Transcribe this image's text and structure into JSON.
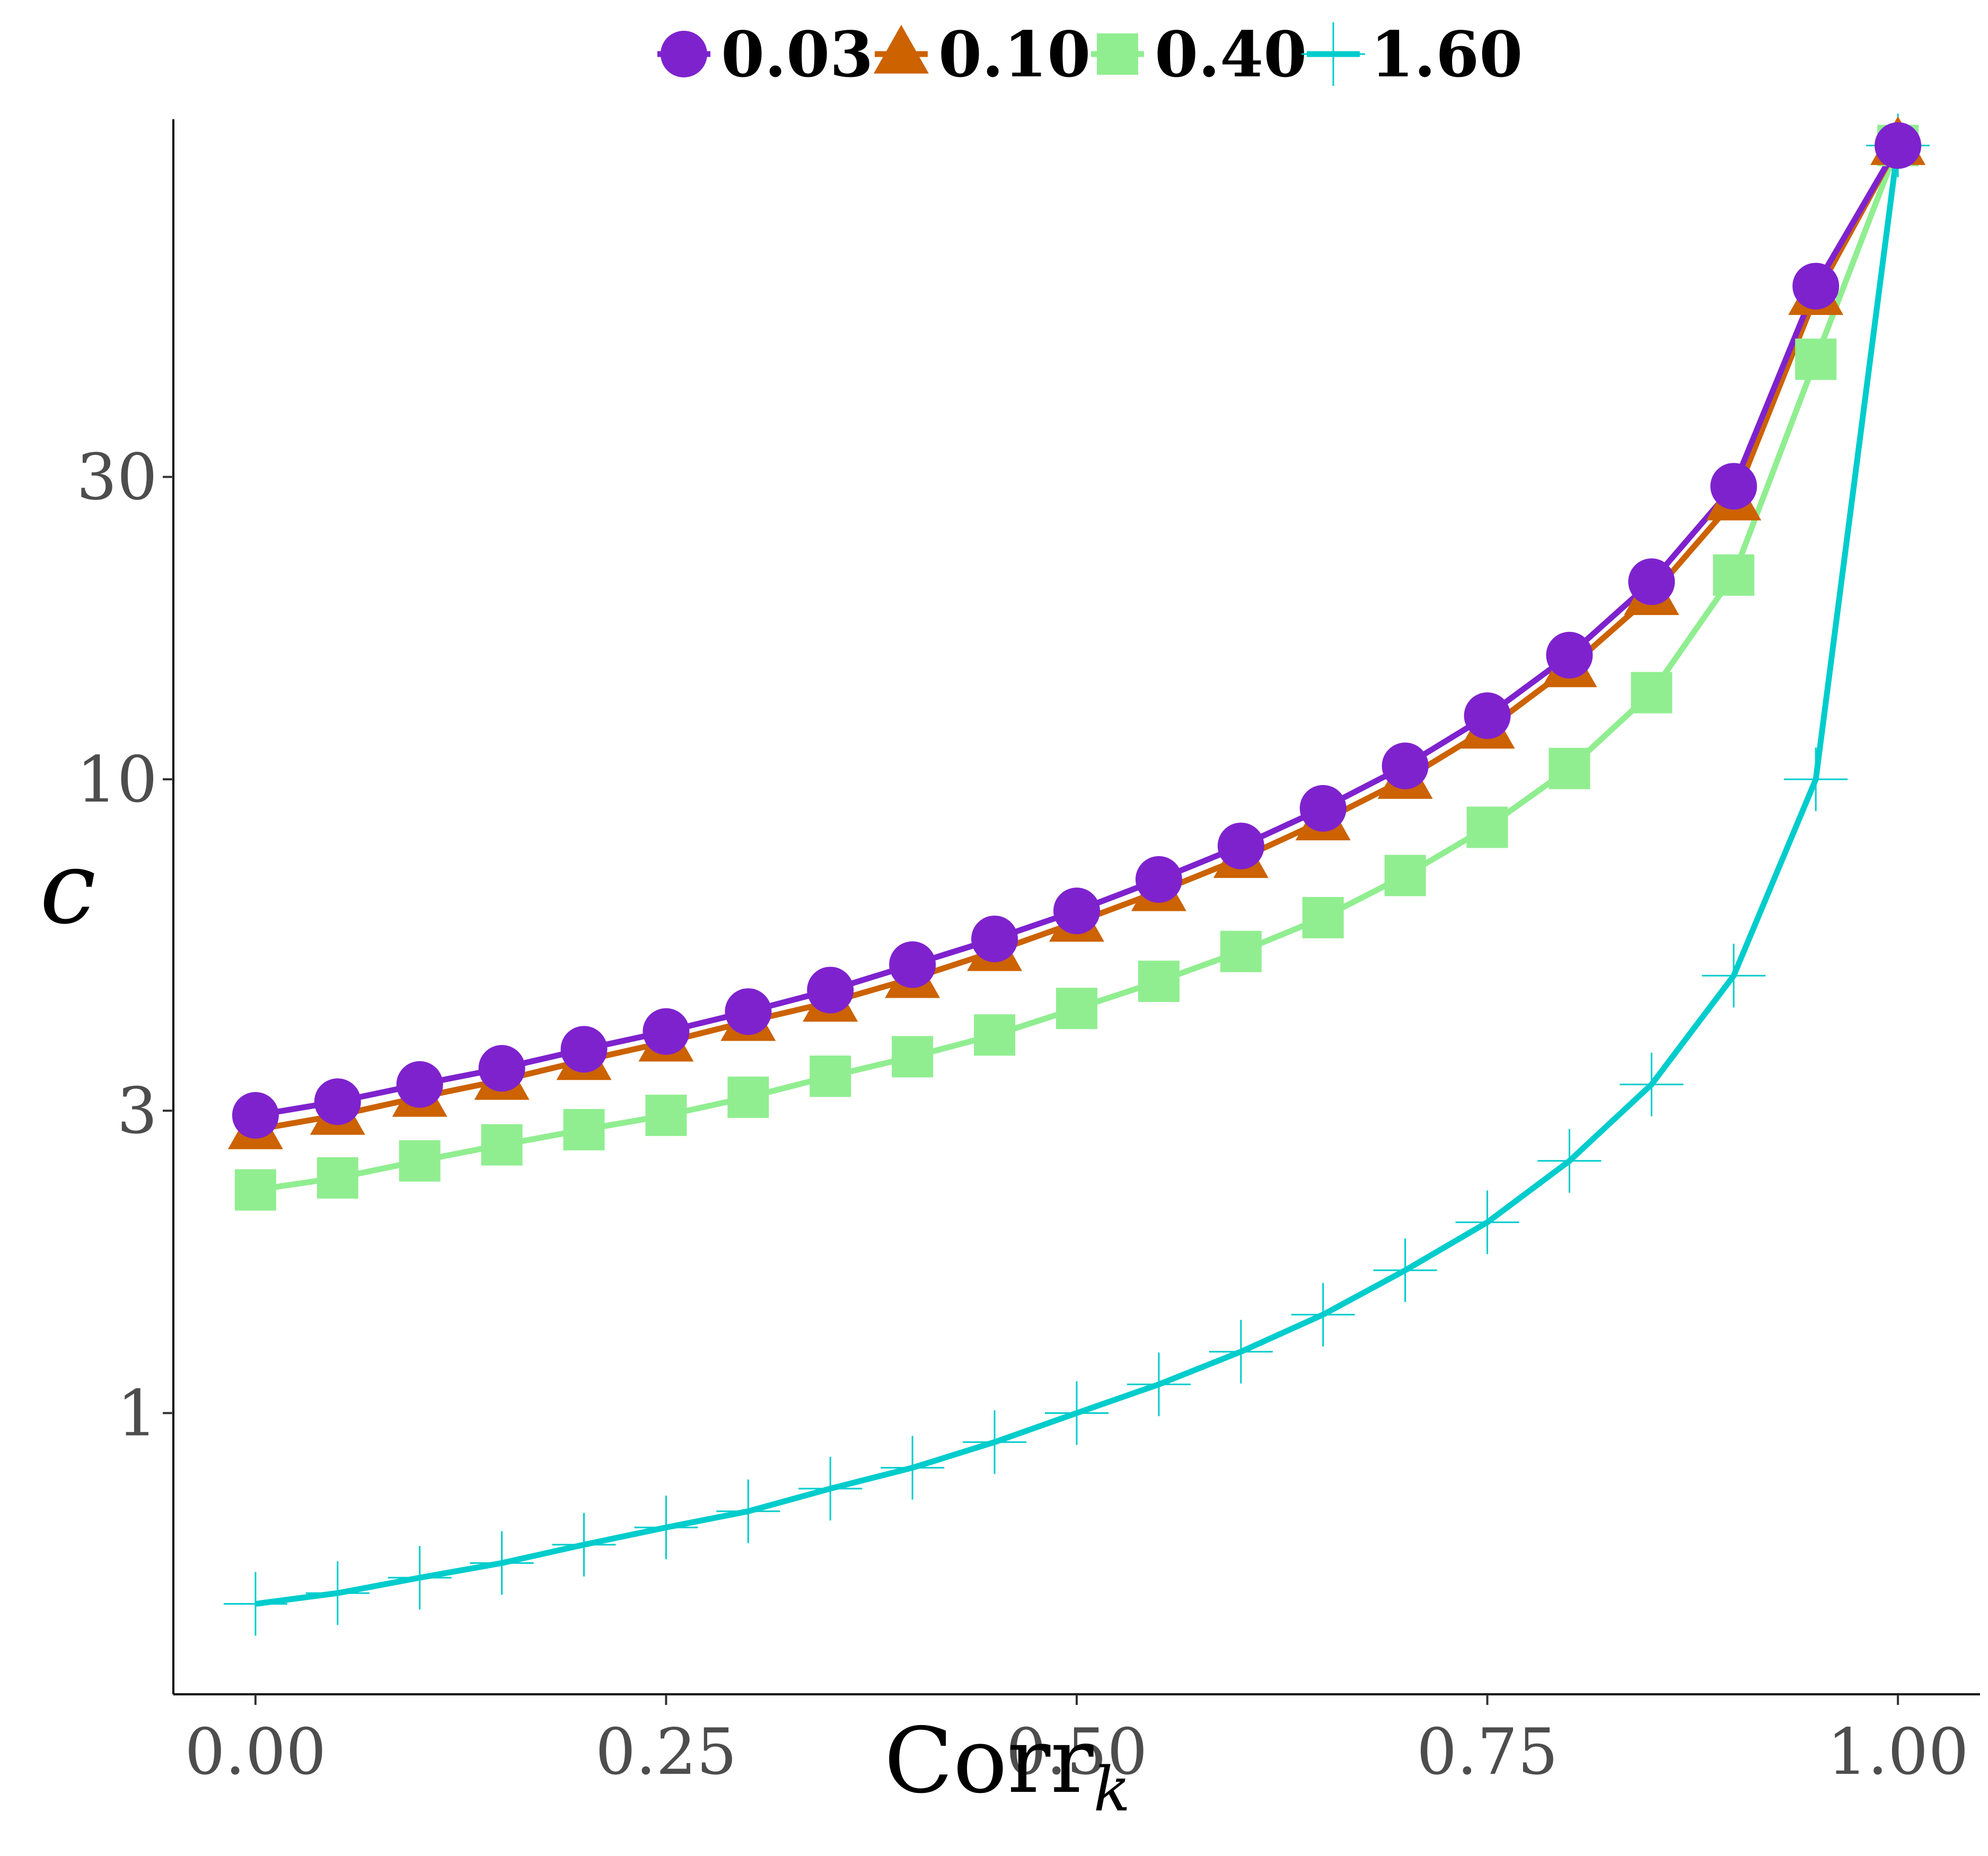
{
  "chart_data": {
    "type": "line",
    "title": "",
    "xlabel_main": "Corr",
    "xlabel_sub": "k",
    "ylabel": "c",
    "xlim": [
      -0.05,
      1.05
    ],
    "ylim": [
      0.36,
      110
    ],
    "y_scale": "log10",
    "x_ticks": [
      0,
      0.25,
      0.5,
      0.75,
      1
    ],
    "x_tick_labels": [
      "0.00",
      "0.25",
      "0.50",
      "0.75",
      "1.00"
    ],
    "y_ticks": [
      1,
      3,
      10,
      30
    ],
    "y_tick_labels": [
      "1",
      "3",
      "10",
      "30"
    ],
    "grid": false,
    "legend_position": "top",
    "x": [
      0,
      0.05,
      0.1,
      0.15,
      0.2,
      0.25,
      0.3,
      0.35,
      0.4,
      0.45,
      0.5,
      0.55,
      0.6,
      0.65,
      0.7,
      0.75,
      0.8,
      0.85,
      0.9,
      0.95,
      1
    ],
    "series": [
      {
        "name": "0.03",
        "color": "#7e22ce",
        "marker": "circle",
        "values": [
          2.95,
          3.1,
          3.3,
          3.5,
          3.75,
          4.0,
          4.3,
          4.65,
          5.1,
          5.6,
          6.2,
          6.95,
          7.85,
          9.0,
          10.5,
          12.6,
          15.7,
          20.5,
          29.0,
          60.0,
          100.0
        ]
      },
      {
        "name": "0.10",
        "color": "#cc6200",
        "marker": "triangle",
        "values": [
          2.8,
          2.95,
          3.15,
          3.35,
          3.6,
          3.85,
          4.15,
          4.45,
          4.85,
          5.35,
          5.95,
          6.65,
          7.5,
          8.6,
          10.0,
          12.0,
          15.0,
          19.5,
          27.5,
          58.0,
          100.0
        ]
      },
      {
        "name": "0.40",
        "color": "#90ee90",
        "marker": "square",
        "values": [
          2.25,
          2.35,
          2.5,
          2.65,
          2.8,
          2.95,
          3.15,
          3.4,
          3.65,
          3.95,
          4.35,
          4.8,
          5.35,
          6.05,
          7.05,
          8.4,
          10.4,
          13.7,
          21.0,
          46.0,
          100.0
        ]
      },
      {
        "name": "1.60",
        "color": "#00cccc",
        "marker": "plus",
        "values": [
          0.5,
          0.52,
          0.55,
          0.58,
          0.62,
          0.66,
          0.7,
          0.76,
          0.82,
          0.9,
          1.0,
          1.11,
          1.25,
          1.43,
          1.68,
          2.0,
          2.5,
          3.3,
          4.9,
          10.0,
          100.0
        ]
      }
    ]
  }
}
